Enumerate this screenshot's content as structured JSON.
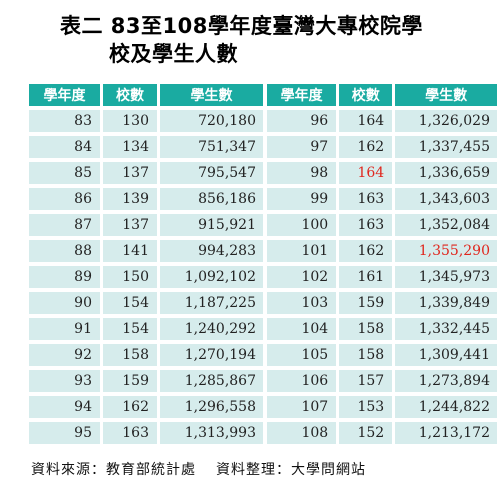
{
  "title": {
    "line1": "表二 83至108學年度臺灣大專校院學",
    "line2": "校及學生人數"
  },
  "headers": {
    "year": "學年度",
    "schools": "校數",
    "students": "學生數"
  },
  "highlight_color": "#e0261d",
  "header_color": "#1aaba1",
  "cell_color": "#d6ecec",
  "left_rows": [
    {
      "year": "83",
      "schools": "130",
      "students": "720,180"
    },
    {
      "year": "84",
      "schools": "134",
      "students": "751,347"
    },
    {
      "year": "85",
      "schools": "137",
      "students": "795,547"
    },
    {
      "year": "86",
      "schools": "139",
      "students": "856,186"
    },
    {
      "year": "87",
      "schools": "137",
      "students": "915,921"
    },
    {
      "year": "88",
      "schools": "141",
      "students": "994,283"
    },
    {
      "year": "89",
      "schools": "150",
      "students": "1,092,102"
    },
    {
      "year": "90",
      "schools": "154",
      "students": "1,187,225"
    },
    {
      "year": "91",
      "schools": "154",
      "students": "1,240,292"
    },
    {
      "year": "92",
      "schools": "158",
      "students": "1,270,194"
    },
    {
      "year": "93",
      "schools": "159",
      "students": "1,285,867"
    },
    {
      "year": "94",
      "schools": "162",
      "students": "1,296,558"
    },
    {
      "year": "95",
      "schools": "163",
      "students": "1,313,993"
    }
  ],
  "right_rows": [
    {
      "year": "96",
      "schools": "164",
      "students": "1,326,029"
    },
    {
      "year": "97",
      "schools": "162",
      "students": "1,337,455"
    },
    {
      "year": "98",
      "schools": "164",
      "students": "1,336,659",
      "schools_highlight": true
    },
    {
      "year": "99",
      "schools": "163",
      "students": "1,343,603"
    },
    {
      "year": "100",
      "schools": "163",
      "students": "1,352,084"
    },
    {
      "year": "101",
      "schools": "162",
      "students": "1,355,290",
      "students_highlight": true
    },
    {
      "year": "102",
      "schools": "161",
      "students": "1,345,973"
    },
    {
      "year": "103",
      "schools": "159",
      "students": "1,339,849"
    },
    {
      "year": "104",
      "schools": "158",
      "students": "1,332,445"
    },
    {
      "year": "105",
      "schools": "158",
      "students": "1,309,441"
    },
    {
      "year": "106",
      "schools": "157",
      "students": "1,273,894"
    },
    {
      "year": "107",
      "schools": "153",
      "students": "1,244,822"
    },
    {
      "year": "108",
      "schools": "152",
      "students": "1,213,172"
    }
  ],
  "footer": {
    "source": "資料來源：教育部統計處",
    "compiled": "資料整理：大學問網站"
  }
}
